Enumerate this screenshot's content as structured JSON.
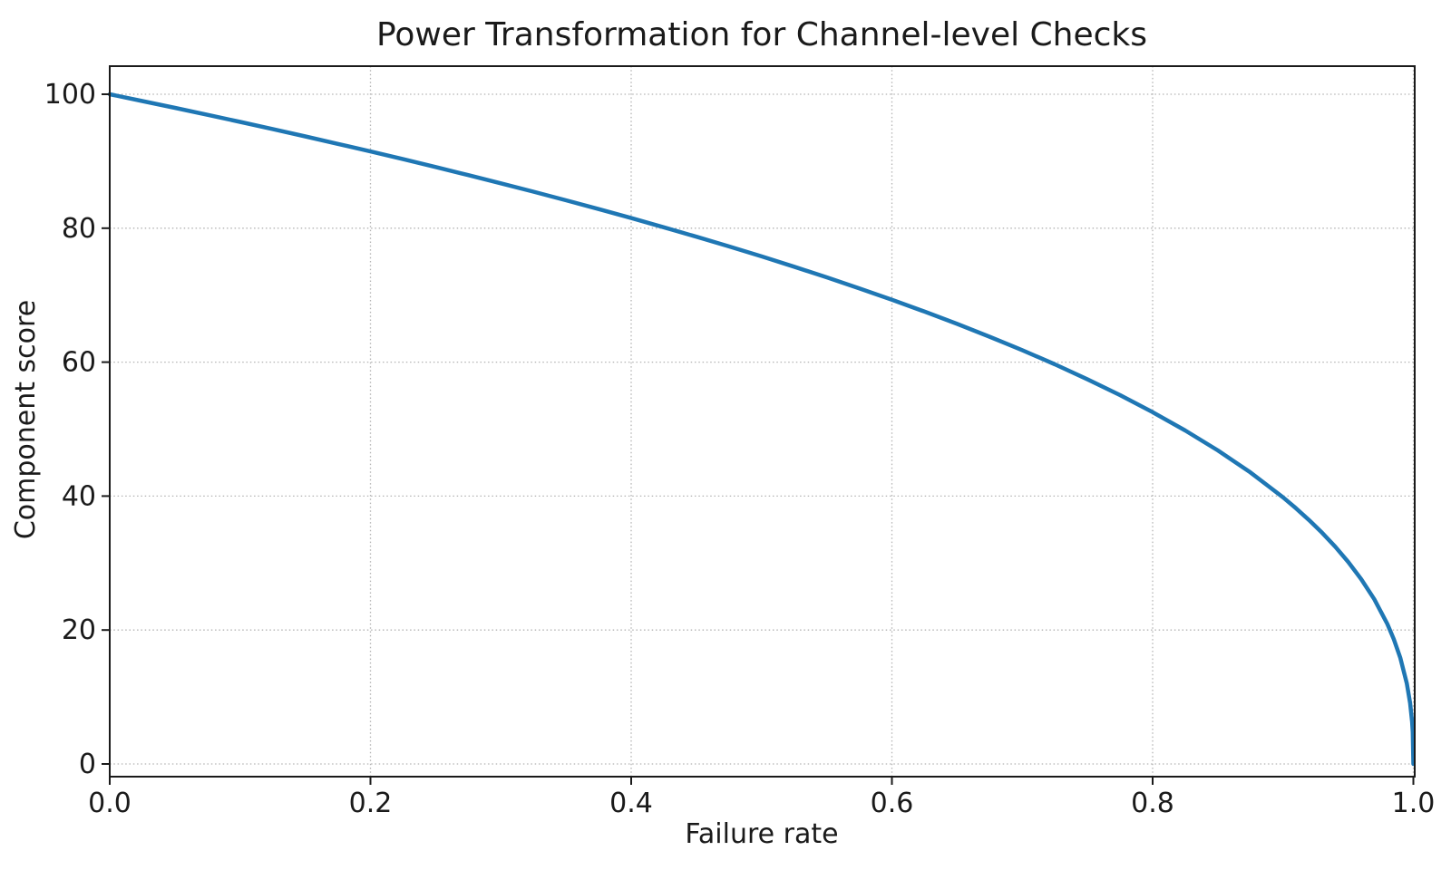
{
  "chart_data": {
    "type": "line",
    "title": "Power Transformation for Channel-level Checks",
    "xlabel": "Failure rate",
    "ylabel": "Component score",
    "xlim": [
      0,
      1
    ],
    "ylim": [
      0,
      100
    ],
    "x_tick_values": [
      0,
      0.2,
      0.4,
      0.6,
      0.8,
      1.0
    ],
    "x_tick_labels": [
      "0.0",
      "0.2",
      "0.4",
      "0.6",
      "0.8",
      "1.0"
    ],
    "y_tick_values": [
      0,
      20,
      40,
      60,
      80,
      100
    ],
    "y_tick_labels": [
      "0",
      "20",
      "40",
      "60",
      "80",
      "100"
    ],
    "grid": "dotted",
    "legend": "none",
    "series": [
      {
        "name": "component_score",
        "points": [
          [
            0,
            100
          ],
          [
            0.025,
            98.99
          ],
          [
            0.05,
            97.97
          ],
          [
            0.075,
            96.93
          ],
          [
            0.1,
            95.87
          ],
          [
            0.125,
            94.8
          ],
          [
            0.15,
            93.71
          ],
          [
            0.175,
            92.59
          ],
          [
            0.2,
            91.46
          ],
          [
            0.225,
            90.31
          ],
          [
            0.25,
            89.13
          ],
          [
            0.275,
            87.93
          ],
          [
            0.3,
            86.7
          ],
          [
            0.325,
            85.45
          ],
          [
            0.35,
            84.17
          ],
          [
            0.375,
            82.86
          ],
          [
            0.4,
            81.52
          ],
          [
            0.425,
            80.14
          ],
          [
            0.45,
            78.73
          ],
          [
            0.475,
            77.28
          ],
          [
            0.5,
            75.79
          ],
          [
            0.525,
            74.25
          ],
          [
            0.55,
            72.66
          ],
          [
            0.575,
            71.02
          ],
          [
            0.6,
            69.31
          ],
          [
            0.625,
            67.55
          ],
          [
            0.65,
            65.71
          ],
          [
            0.675,
            63.79
          ],
          [
            0.7,
            61.78
          ],
          [
            0.725,
            59.67
          ],
          [
            0.75,
            57.43
          ],
          [
            0.775,
            55.07
          ],
          [
            0.8,
            52.53
          ],
          [
            0.825,
            49.8
          ],
          [
            0.85,
            46.82
          ],
          [
            0.875,
            43.53
          ],
          [
            0.9,
            39.81
          ],
          [
            0.91,
            38.17
          ],
          [
            0.92,
            36.41
          ],
          [
            0.93,
            34.52
          ],
          [
            0.94,
            32.45
          ],
          [
            0.95,
            30.17
          ],
          [
            0.96,
            27.59
          ],
          [
            0.97,
            24.6
          ],
          [
            0.98,
            20.91
          ],
          [
            0.985,
            18.64
          ],
          [
            0.99,
            15.85
          ],
          [
            0.995,
            12.01
          ],
          [
            0.9975,
            9.11
          ],
          [
            0.999,
            6.31
          ],
          [
            0.9995,
            4.78
          ],
          [
            1,
            0
          ]
        ]
      }
    ]
  },
  "colors": {
    "line": "#1f77b4",
    "grid": "#b3b3b3",
    "text": "#1a1a1a",
    "spine": "#1a1a1a",
    "background": "#ffffff"
  }
}
